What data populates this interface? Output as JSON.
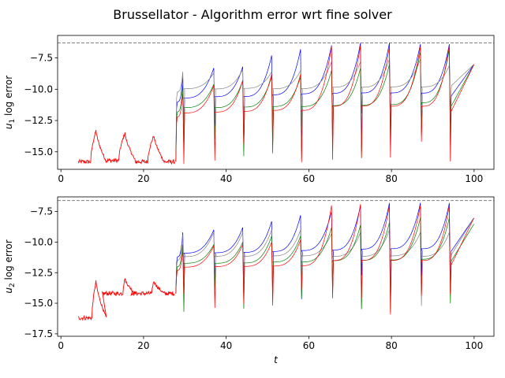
{
  "chart_data": {
    "type": "line",
    "title": "Brussellator - Algorithm error wrt fine solver",
    "colors": {
      "blue": "#0000ff",
      "gray": "#808080",
      "green": "#008000",
      "red": "#ff0000",
      "threshold": "#808080"
    },
    "panels": [
      {
        "ylabel_base": "u",
        "ylabel_sub": "1",
        "ylabel_rest": " log error",
        "xlim": [
          -0.8,
          104.8
        ],
        "ylim": [
          -16.4,
          -5.7
        ],
        "yticks": [
          -15.0,
          -12.5,
          -10.0,
          -7.5
        ],
        "ytick_labels": [
          "−15.0",
          "−12.5",
          "−10.0",
          "−7.5"
        ],
        "xticks": [
          0,
          20,
          40,
          60,
          80,
          100
        ],
        "xtick_labels": [
          "0",
          "20",
          "40",
          "60",
          "80",
          "100"
        ],
        "threshold": -6.3,
        "early_segments": [
          {
            "x0": 4.2,
            "x1": 7.2,
            "base": -15.8,
            "peak_x": 8.5,
            "peak": -13.3
          },
          {
            "x0": 11.0,
            "x1": 14.0,
            "base": -15.7,
            "peak_x": 15.5,
            "peak": -13.5
          },
          {
            "x0": 18.0,
            "x1": 21.0,
            "base": -15.8,
            "peak_x": 22.5,
            "peak": -13.7
          }
        ],
        "peak_times": [
          29.5,
          37.0,
          44.0,
          51.0,
          58.0,
          65.5,
          72.5,
          79.5,
          87.0,
          94.0
        ],
        "series": [
          {
            "color": "blue",
            "peaks": [
              -9.0,
              -8.3,
              -8.2,
              -7.3,
              -6.8,
              -6.5,
              -6.3,
              -6.3,
              -6.4,
              -6.4
            ],
            "base": -11.0,
            "final": -8.0
          },
          {
            "color": "gray",
            "peaks": [
              -8.6,
              -8.7,
              -8.4,
              -8.6,
              -8.5,
              -7.8,
              -7.8,
              -7.6,
              -7.6,
              -8.1
            ],
            "base": -10.2,
            "final": -8.0
          },
          {
            "color": "green",
            "peaks": [
              -9.6,
              -9.6,
              -9.3,
              -9.0,
              -9.0,
              -8.5,
              -8.3,
              -8.0,
              -7.0,
              -6.8
            ],
            "base": -11.8,
            "final": -8.0
          },
          {
            "color": "red",
            "peaks": [
              -10.2,
              -9.7,
              -9.3,
              -8.8,
              -8.8,
              -6.6,
              -6.5,
              -6.6,
              -6.6,
              -6.5
            ],
            "base": -12.2,
            "final": -8.0
          }
        ]
      },
      {
        "ylabel_base": "u",
        "ylabel_sub": "2",
        "ylabel_rest": " log error",
        "xlim": [
          -0.8,
          104.8
        ],
        "ylim": [
          -17.7,
          -6.3
        ],
        "yticks": [
          -17.5,
          -15.0,
          -12.5,
          -10.0,
          -7.5
        ],
        "ytick_labels": [
          "−17.5",
          "−15.0",
          "−12.5",
          "−10.0",
          "−7.5"
        ],
        "xticks": [
          0,
          20,
          40,
          60,
          80,
          100
        ],
        "xtick_labels": [
          "0",
          "20",
          "40",
          "60",
          "80",
          "100"
        ],
        "xlabel": "t",
        "threshold": -6.6,
        "early_segments": [
          {
            "x0": 4.2,
            "x1": 7.5,
            "base": -16.2,
            "peak_x": 8.5,
            "peak": -13.2
          },
          {
            "x0": 10.0,
            "x1": 15.0,
            "base": -14.2,
            "peak_x": 15.5,
            "peak": -13.0
          },
          {
            "x0": 17.0,
            "x1": 22.0,
            "base": -14.2,
            "peak_x": 22.5,
            "peak": -13.2
          }
        ],
        "peak_times": [
          29.5,
          37.0,
          44.0,
          51.0,
          58.0,
          65.5,
          72.5,
          79.5,
          87.0,
          94.0
        ],
        "series": [
          {
            "color": "blue",
            "peaks": [
              -9.2,
              -9.0,
              -8.8,
              -8.3,
              -7.8,
              -7.5,
              -7.0,
              -6.8,
              -6.8,
              -6.8
            ],
            "base": -11.2,
            "final": -8.0
          },
          {
            "color": "gray",
            "peaks": [
              -9.4,
              -9.2,
              -9.2,
              -9.0,
              -9.0,
              -9.3,
              -9.2,
              -9.0,
              -9.2,
              -9.2
            ],
            "base": -11.5,
            "final": -8.0
          },
          {
            "color": "green",
            "peaks": [
              -10.2,
              -10.2,
              -10.0,
              -9.5,
              -9.5,
              -8.8,
              -8.6,
              -8.4,
              -8.0,
              -8.0
            ],
            "base": -12.0,
            "final": -8.5
          },
          {
            "color": "red",
            "peaks": [
              -10.6,
              -10.3,
              -10.2,
              -10.0,
              -9.8,
              -7.0,
              -6.9,
              -7.0,
              -7.0,
              -7.0
            ],
            "base": -12.3,
            "final": -8.0
          }
        ]
      }
    ]
  }
}
